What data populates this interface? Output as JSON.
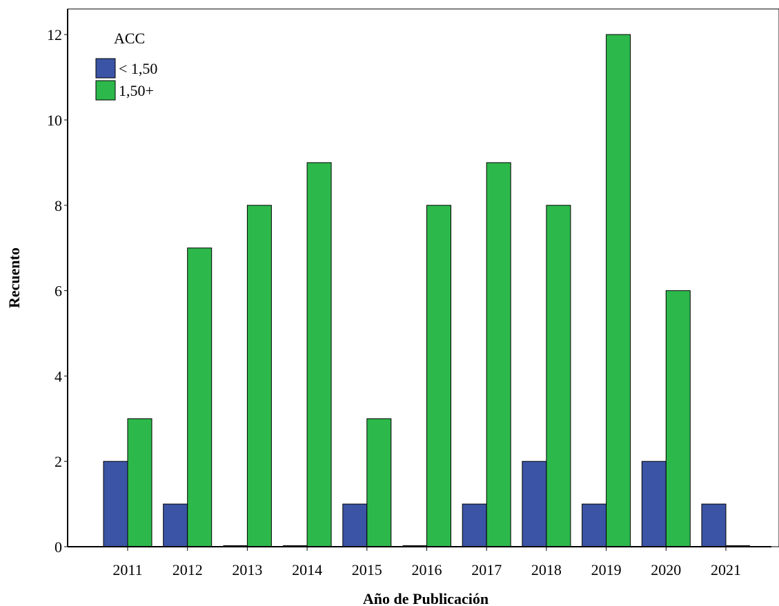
{
  "chart_data": {
    "type": "bar",
    "title": "",
    "xlabel": "Año de Publicación",
    "ylabel": "Recuento",
    "categories": [
      "2011",
      "2012",
      "2013",
      "2014",
      "2015",
      "2016",
      "2017",
      "2018",
      "2019",
      "2020",
      "2021"
    ],
    "series": [
      {
        "name": "< 1,50",
        "color": "#3b54a5",
        "values": [
          2,
          1,
          0,
          0,
          1,
          0,
          1,
          2,
          1,
          2,
          1
        ]
      },
      {
        "name": "1,50+",
        "color": "#2db84b",
        "values": [
          3,
          7,
          8,
          9,
          3,
          8,
          9,
          8,
          12,
          6,
          0
        ]
      }
    ],
    "ylim": [
      0,
      12.6
    ],
    "yticks": [
      "0",
      "2",
      "4",
      "6",
      "8",
      "10",
      "12"
    ],
    "grid": false,
    "legend": {
      "title": "ACC",
      "placement": "top-left"
    }
  }
}
